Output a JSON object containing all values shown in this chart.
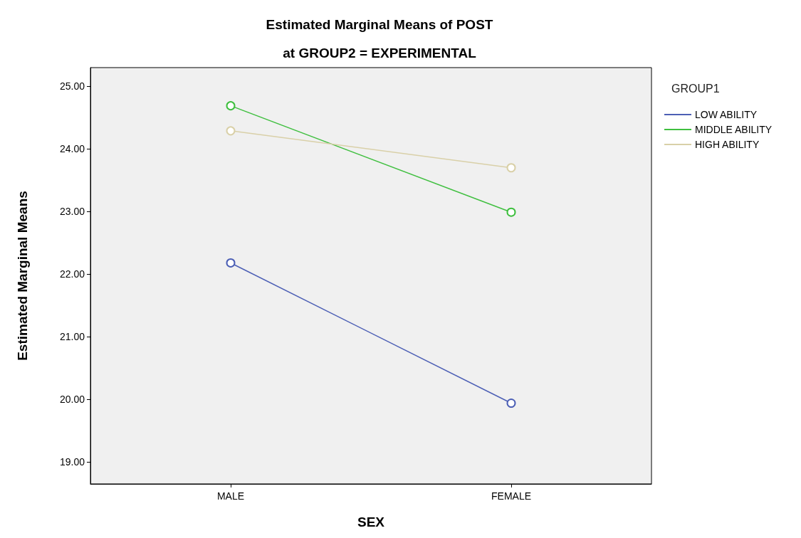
{
  "chart_data": {
    "type": "line",
    "title": "Estimated Marginal Means of POST",
    "subtitle": "at GROUP2 = EXPERIMENTAL",
    "xlabel": "SEX",
    "ylabel": "Estimated Marginal Means",
    "legend_title": "GROUP1",
    "categories": [
      "MALE",
      "FEMALE"
    ],
    "series": [
      {
        "name": "LOW ABILITY",
        "color": "#4c5fb5",
        "values": [
          22.18,
          19.94
        ]
      },
      {
        "name": "MIDDLE ABILITY",
        "color": "#3fbf3f",
        "values": [
          24.69,
          22.99
        ]
      },
      {
        "name": "HIGH ABILITY",
        "color": "#d9d0a8",
        "values": [
          24.29,
          23.7
        ]
      }
    ],
    "ylim": [
      18.65,
      25.3
    ],
    "yticks": [
      {
        "value": 19,
        "label": "19.00"
      },
      {
        "value": 20,
        "label": "20.00"
      },
      {
        "value": 21,
        "label": "21.00"
      },
      {
        "value": 22,
        "label": "22.00"
      },
      {
        "value": 23,
        "label": "23.00"
      },
      {
        "value": 24,
        "label": "24.00"
      },
      {
        "value": 25,
        "label": "25.00"
      }
    ],
    "grid": false,
    "legend": "top right",
    "marker": "circle",
    "line_style": "solid"
  }
}
